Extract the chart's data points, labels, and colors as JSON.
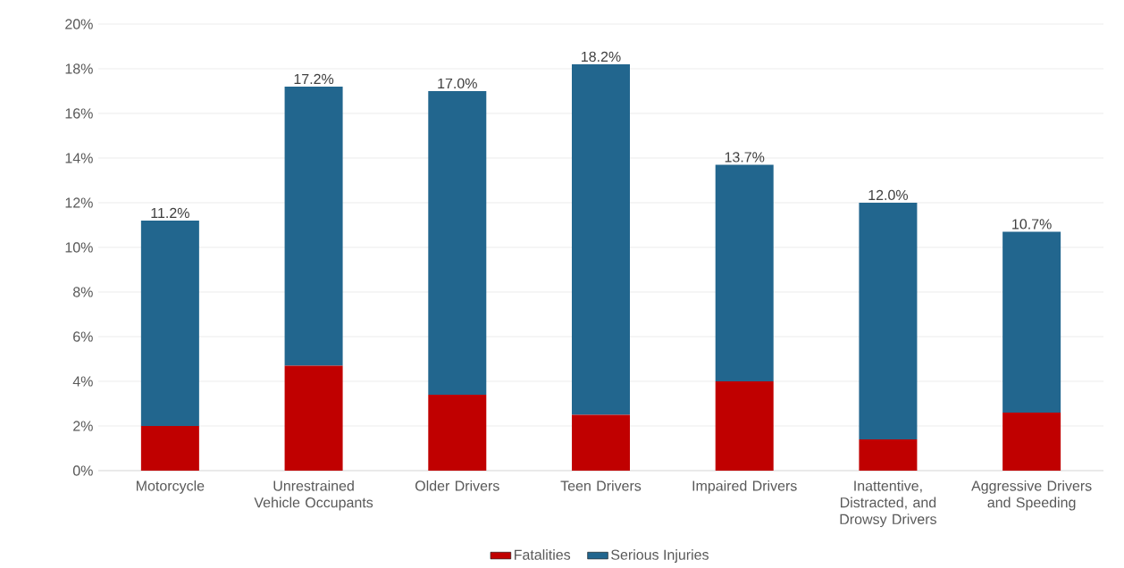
{
  "chart_data": {
    "type": "bar",
    "stacked": true,
    "categories": [
      "Motorcycle",
      "Unrestrained Vehicle Occupants",
      "Older Drivers",
      "Teen Drivers",
      "Impaired Drivers",
      "Inattentive, Distracted, and Drowsy Drivers",
      "Aggressive Drivers and Speeding"
    ],
    "series": [
      {
        "name": "Fatalities",
        "color": "#c00000",
        "values": [
          2.0,
          4.7,
          3.4,
          2.5,
          4.0,
          1.4,
          2.6
        ]
      },
      {
        "name": "Serious Injuries",
        "color": "#22668e",
        "values": [
          9.2,
          12.5,
          13.6,
          15.7,
          9.7,
          10.6,
          8.1
        ]
      }
    ],
    "totals": [
      "11.2%",
      "17.2%",
      "17.0%",
      "18.2%",
      "13.7%",
      "12.0%",
      "10.7%"
    ],
    "ylim": [
      0,
      20
    ],
    "yticks": [
      {
        "value": 0,
        "label": "0%"
      },
      {
        "value": 2,
        "label": "2%"
      },
      {
        "value": 4,
        "label": "4%"
      },
      {
        "value": 6,
        "label": "6%"
      },
      {
        "value": 8,
        "label": "8%"
      },
      {
        "value": 10,
        "label": "10%"
      },
      {
        "value": 12,
        "label": "12%"
      },
      {
        "value": 14,
        "label": "14%"
      },
      {
        "value": 16,
        "label": "16%"
      },
      {
        "value": 18,
        "label": "18%"
      },
      {
        "value": 20,
        "label": "20%"
      }
    ],
    "grid": "y",
    "legend": "bottom"
  }
}
